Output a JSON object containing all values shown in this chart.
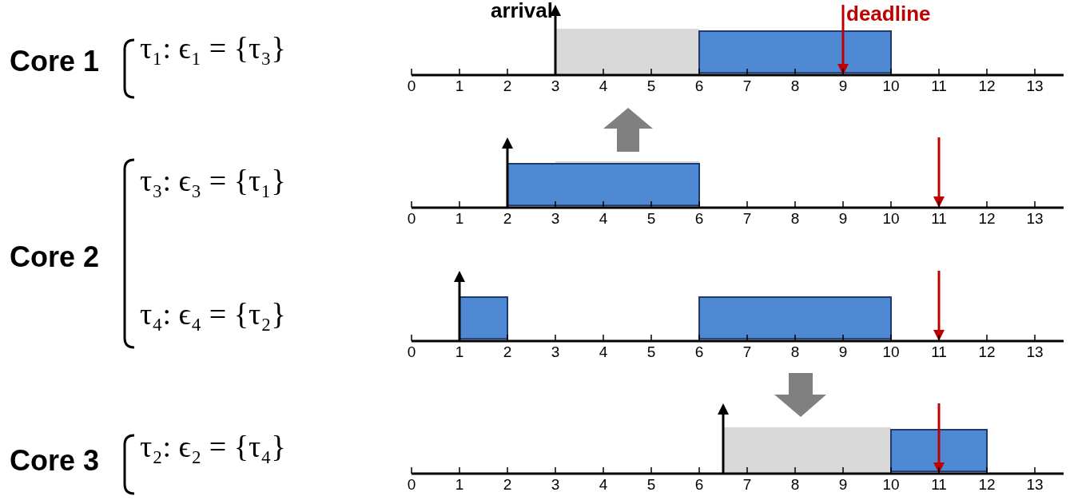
{
  "chart_data": [
    {
      "type": "bar",
      "orientation": "horizontal",
      "categories": [
        "τ₁: ϵ₁ = {τ₃}"
      ],
      "annotations": [
        "Core 1"
      ],
      "series": [
        {
          "color": "#4f88d3",
          "values": [
            4
          ],
          "base": [
            6
          ]
        }
      ],
      "xlim": [
        0,
        13.6
      ],
      "xticks": [
        0,
        1,
        2,
        3,
        4,
        5,
        6,
        7,
        8,
        9,
        10,
        11,
        12,
        13
      ],
      "ref_lines": [
        {
          "axis": "x",
          "value": 3,
          "label": "arrival",
          "color": "#000000"
        },
        {
          "axis": "x",
          "value": 9,
          "label": "deadline",
          "color": "#c00000"
        }
      ],
      "bands": [
        {
          "axis": "x",
          "from": 3,
          "to": 6,
          "color": "#d9d9d9"
        }
      ]
    },
    {
      "type": "bar",
      "orientation": "horizontal",
      "categories": [
        "τ₃: ϵ₃ = {τ₁}"
      ],
      "annotations": [
        "Core 2"
      ],
      "series": [
        {
          "color": "#4f88d3",
          "values": [
            4
          ],
          "base": [
            2
          ]
        }
      ],
      "xlim": [
        0,
        13.6
      ],
      "xticks": [
        0,
        1,
        2,
        3,
        4,
        5,
        6,
        7,
        8,
        9,
        10,
        11,
        12,
        13
      ],
      "ref_lines": [
        {
          "axis": "x",
          "value": 2,
          "color": "#000000"
        },
        {
          "axis": "x",
          "value": 11,
          "color": "#c00000"
        }
      ],
      "bands": [
        {
          "axis": "x",
          "from": 3,
          "to": 6,
          "color": "#d9d9d9"
        }
      ]
    },
    {
      "type": "bar",
      "orientation": "horizontal",
      "categories": [
        "τ₄: ϵ₄ = {τ₂}"
      ],
      "series": [
        {
          "color": "#4f88d3",
          "values": [
            1
          ],
          "base": [
            1
          ]
        },
        {
          "color": "#4f88d3",
          "values": [
            4
          ],
          "base": [
            6
          ]
        }
      ],
      "xlim": [
        0,
        13.6
      ],
      "xticks": [
        0,
        1,
        2,
        3,
        4,
        5,
        6,
        7,
        8,
        9,
        10,
        11,
        12,
        13
      ],
      "ref_lines": [
        {
          "axis": "x",
          "value": 1,
          "color": "#000000"
        },
        {
          "axis": "x",
          "value": 11,
          "color": "#c00000"
        }
      ]
    },
    {
      "type": "bar",
      "orientation": "horizontal",
      "categories": [
        "τ₂: ϵ₂ = {τ₄}"
      ],
      "annotations": [
        "Core 3"
      ],
      "series": [
        {
          "color": "#4f88d3",
          "values": [
            2
          ],
          "base": [
            10
          ]
        }
      ],
      "xlim": [
        0,
        13.6
      ],
      "xticks": [
        0,
        1,
        2,
        3,
        4,
        5,
        6,
        7,
        8,
        9,
        10,
        11,
        12,
        13
      ],
      "ref_lines": [
        {
          "axis": "x",
          "value": 6.5,
          "color": "#000000"
        },
        {
          "axis": "x",
          "value": 11,
          "color": "#c00000"
        }
      ],
      "bands": [
        {
          "axis": "x",
          "from": 6.5,
          "to": 10,
          "color": "#d9d9d9"
        }
      ]
    }
  ]
}
